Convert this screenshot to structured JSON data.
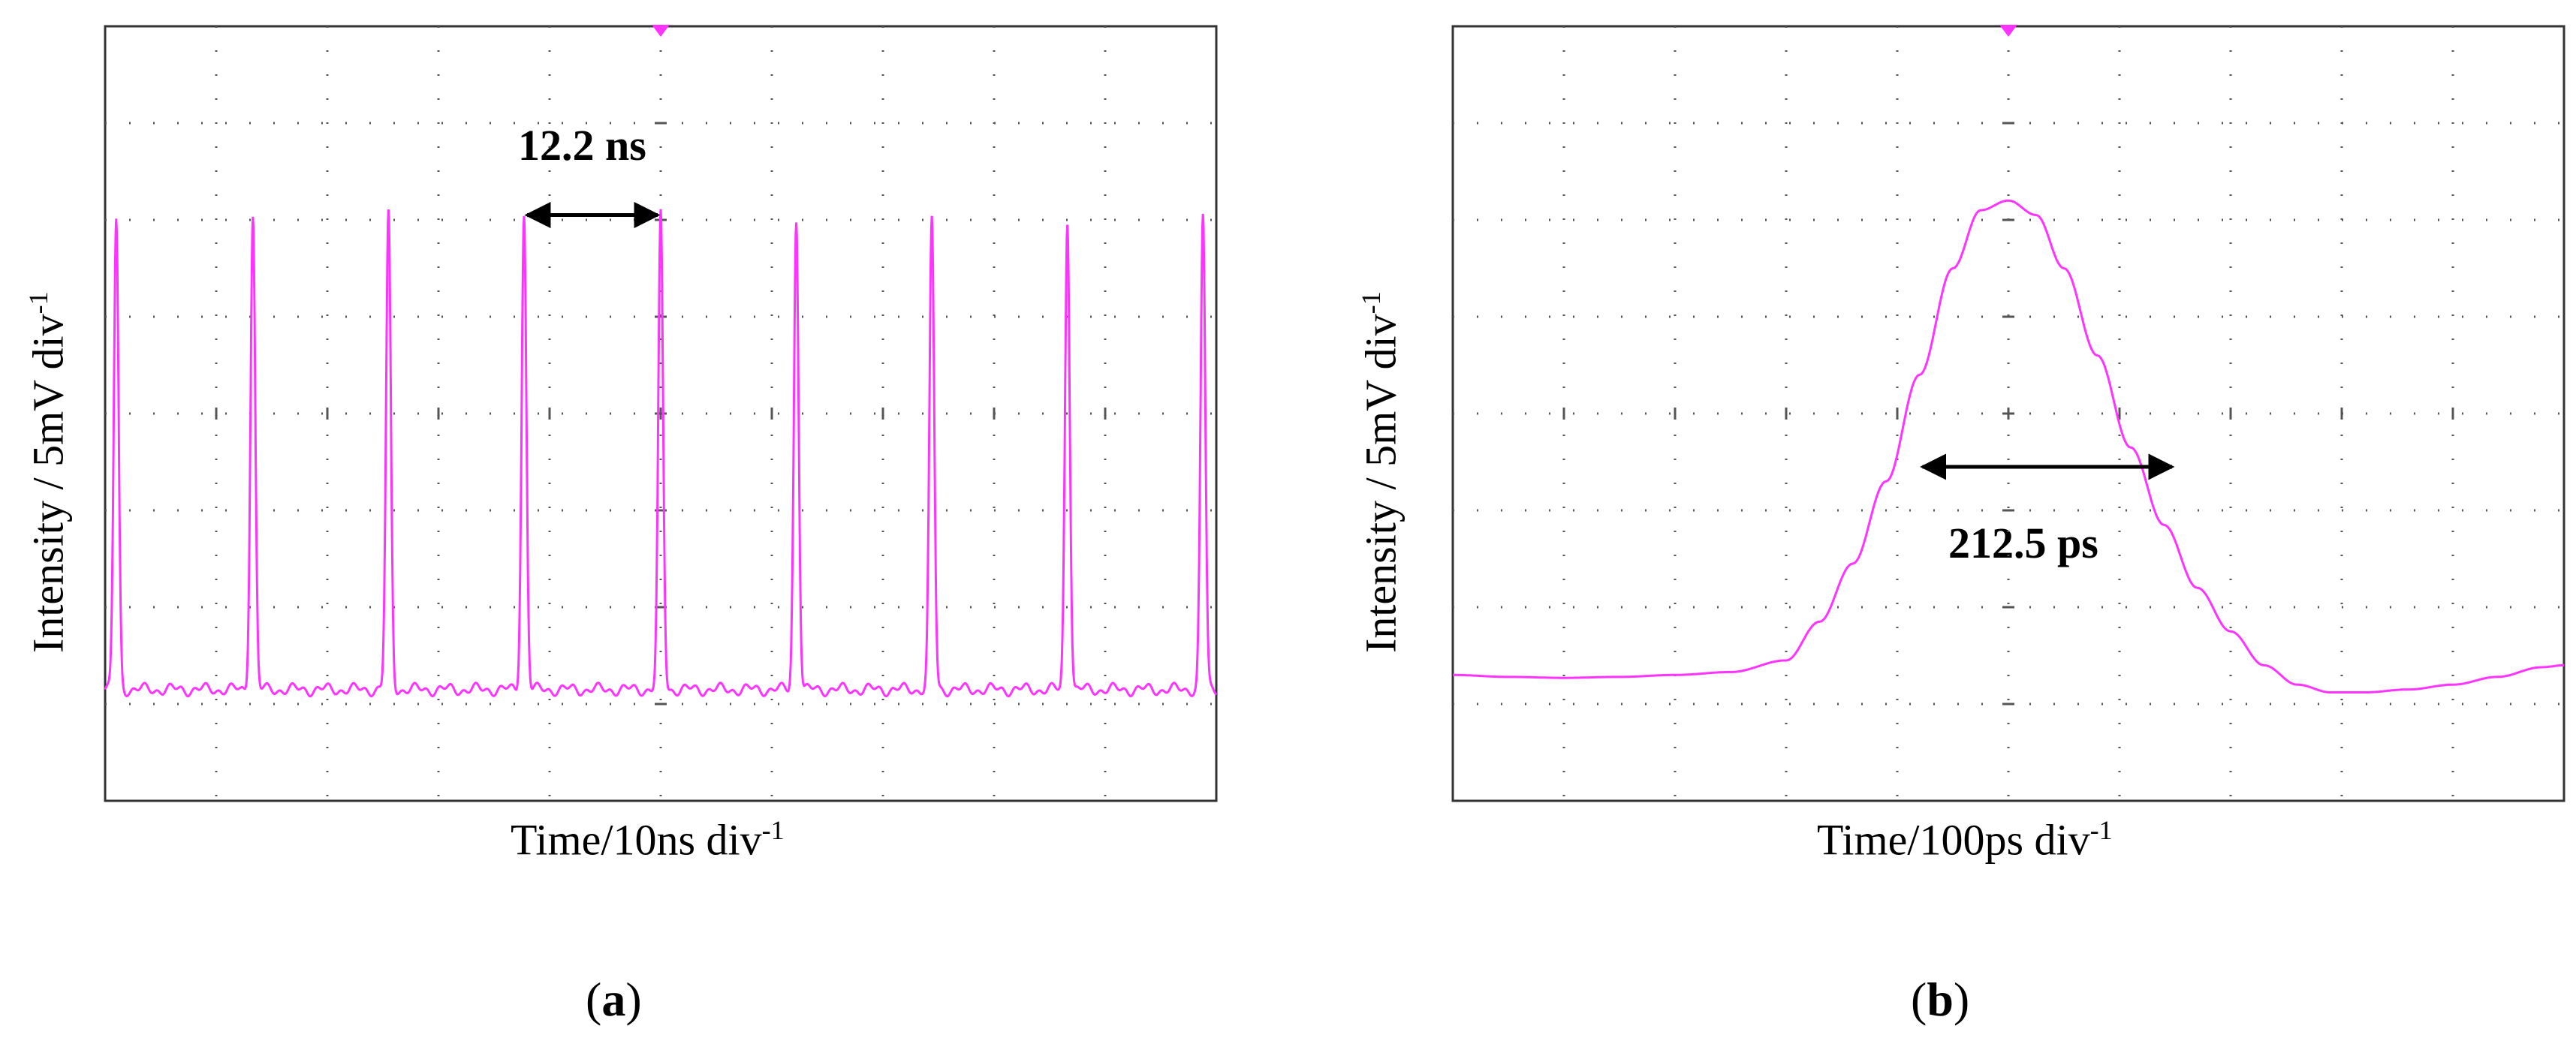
{
  "colors": {
    "trace": "#ff33ff",
    "grid": "#555555",
    "frame": "#333333",
    "arrow": "#000000"
  },
  "panels": [
    {
      "id": "a",
      "label": "a",
      "xlabel_main": "Time/10ns div",
      "xlabel_sup": "-1",
      "ylabel_main": "Intensity / 5mV div",
      "ylabel_sup": "-1",
      "annotation": "12.2 ns"
    },
    {
      "id": "b",
      "label": "b",
      "xlabel_main": "Time/100ps div",
      "xlabel_sup": "-1",
      "ylabel_main": "Intensity / 5mV div",
      "ylabel_sup": "-1",
      "annotation": "212.5 ps"
    }
  ],
  "chart_data": [
    {
      "type": "line",
      "title": "",
      "xlabel": "Time/10ns div-1",
      "ylabel": "Intensity / 5mV div-1",
      "xlim": [
        0,
        10
      ],
      "ylim": [
        0,
        8
      ],
      "x_unit": "div (10 ns/div)",
      "y_unit": "div (5 mV/div)",
      "grid": true,
      "series": [
        {
          "peaks_x": [
            0.1,
            1.33,
            2.55,
            3.77,
            5.0,
            6.22,
            7.44,
            8.66,
            9.88
          ],
          "peak_heights": [
            6.0,
            6.05,
            6.05,
            6.05,
            6.05,
            6.0,
            6.0,
            6.0,
            6.05
          ],
          "baseline": 1.15,
          "peak_width_div": 0.06
        }
      ],
      "annotations": [
        {
          "text": "12.2 ns",
          "x_from": 3.77,
          "x_to": 5.0,
          "y": 6.05
        }
      ]
    },
    {
      "type": "line",
      "title": "",
      "xlabel": "Time/100ps div-1",
      "ylabel": "Intensity / 5mV div-1",
      "xlim": [
        0,
        10
      ],
      "ylim": [
        0,
        8
      ],
      "x_unit": "div (100 ps/div)",
      "y_unit": "div (5 mV/div)",
      "grid": true,
      "series": [
        {
          "x": [
            0,
            0.5,
            1,
            1.5,
            2,
            2.5,
            3.0,
            3.3,
            3.6,
            3.9,
            4.2,
            4.5,
            4.75,
            5.0,
            5.25,
            5.5,
            5.8,
            6.1,
            6.4,
            6.7,
            7.0,
            7.3,
            7.6,
            7.9,
            8.2,
            8.6,
            9.0,
            9.4,
            9.8,
            10
          ],
          "y": [
            1.3,
            1.28,
            1.27,
            1.28,
            1.3,
            1.33,
            1.45,
            1.85,
            2.45,
            3.3,
            4.4,
            5.5,
            6.1,
            6.2,
            6.05,
            5.5,
            4.6,
            3.65,
            2.85,
            2.2,
            1.75,
            1.4,
            1.2,
            1.12,
            1.12,
            1.15,
            1.2,
            1.28,
            1.38,
            1.4
          ]
        }
      ],
      "annotations": [
        {
          "text": "212.5 ps",
          "x_from": 4.2,
          "x_to": 6.5,
          "y": 3.45
        }
      ]
    }
  ]
}
